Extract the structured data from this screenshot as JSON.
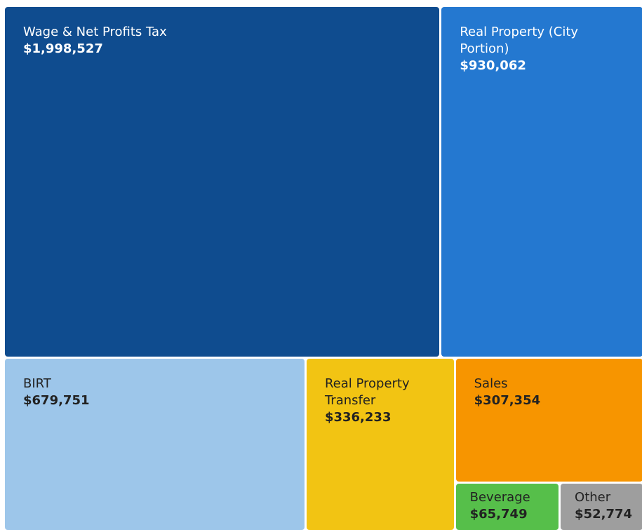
{
  "chart_data": {
    "type": "treemap",
    "categories": [
      "Wage & Net Profits Tax",
      "Real Property (City Portion)",
      "BIRT",
      "Real Property Transfer",
      "Sales",
      "Beverage",
      "Other"
    ],
    "values": [
      1998527,
      930062,
      679751,
      336233,
      307354,
      65749,
      52774
    ],
    "value_labels": [
      "$1,998,527",
      "$930,062",
      "$679,751",
      "$336,233",
      "$307,354",
      "$65,749",
      "$52,774"
    ],
    "colors": [
      "#0f4c8f",
      "#2478d0",
      "#9dc6ea",
      "#f2c413",
      "#f79500",
      "#56bf4a",
      "#9e9e9e"
    ]
  }
}
